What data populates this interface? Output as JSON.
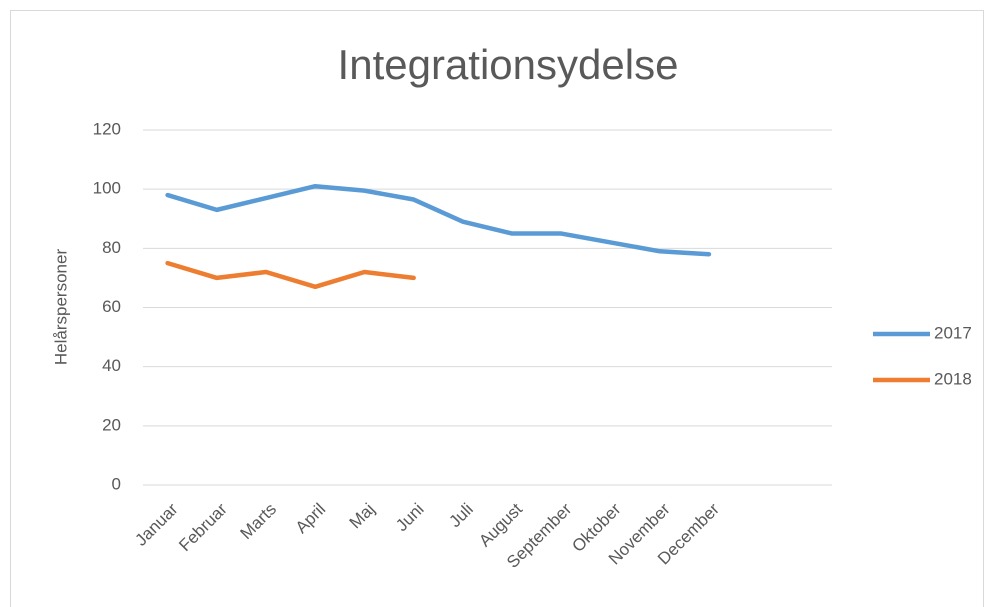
{
  "chart_data": {
    "type": "line",
    "title": "Integrationsydelse",
    "y_label": "Helårspersoner",
    "categories": [
      "Januar",
      "Februar",
      "Marts",
      "April",
      "Maj",
      "Juni",
      "Juli",
      "August",
      "September",
      "Oktober",
      "November",
      "December",
      null,
      null
    ],
    "series": [
      {
        "name": "2017",
        "color": "#5b9bd5",
        "values": [
          98,
          93,
          97,
          101,
          99.5,
          96.5,
          89,
          85,
          85,
          82,
          79,
          78,
          null,
          null
        ]
      },
      {
        "name": "2018",
        "color": "#ed7d31",
        "values": [
          75,
          70,
          72,
          67,
          72,
          70,
          null,
          null,
          null,
          null,
          null,
          null,
          null,
          null
        ]
      }
    ],
    "ylim": [
      0,
      120
    ],
    "yticks": [
      0,
      20,
      40,
      60,
      80,
      100,
      120
    ],
    "grid": true,
    "legend": "right"
  }
}
